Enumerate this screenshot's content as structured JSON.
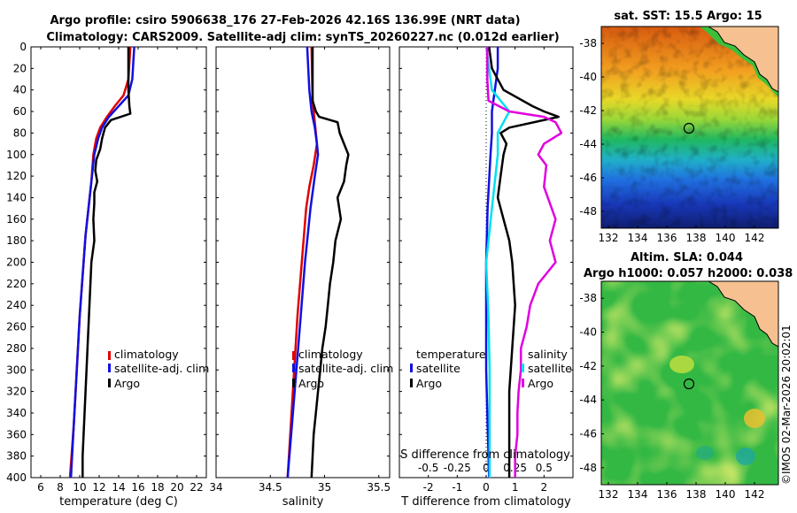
{
  "header": {
    "line1": "Argo profile: csiro 5906638_176 27-Feb-2026 42.16S 136.99E (NRT data)",
    "line2": "Climatology: CARS2009. Satellite-adj clim: synTS_20260227.nc (0.012d earlier)"
  },
  "chart_data": [
    {
      "id": "temperature",
      "type": "line",
      "xlabel": "temperature (deg C)",
      "xlim": [
        5,
        23
      ],
      "xticks": [
        6,
        8,
        10,
        12,
        14,
        16,
        18,
        20,
        22
      ],
      "ylim": [
        0,
        400
      ],
      "yticks": [
        0,
        20,
        40,
        60,
        80,
        100,
        120,
        140,
        160,
        180,
        200,
        220,
        240,
        260,
        280,
        300,
        320,
        340,
        360,
        380,
        400
      ],
      "y_reversed": true,
      "legend": [
        "climatology",
        "satellite-adj. clim",
        "Argo"
      ],
      "series": [
        {
          "name": "climatology",
          "color": "#e00000",
          "depth": [
            0,
            30,
            45,
            55,
            65,
            75,
            85,
            100,
            125,
            150,
            175,
            200,
            250,
            300,
            350,
            400
          ],
          "values": [
            15.2,
            15.0,
            14.5,
            13.6,
            12.8,
            12.1,
            11.7,
            11.4,
            11.2,
            10.9,
            10.6,
            10.4,
            10.0,
            9.7,
            9.4,
            9.0
          ]
        },
        {
          "name": "satellite-adj. clim",
          "color": "#1010e0",
          "depth": [
            0,
            30,
            45,
            55,
            65,
            75,
            85,
            100,
            125,
            150,
            175,
            200,
            250,
            300,
            350,
            400
          ],
          "values": [
            15.6,
            15.4,
            15.0,
            14.0,
            13.0,
            12.3,
            11.9,
            11.5,
            11.2,
            10.9,
            10.6,
            10.4,
            10.0,
            9.7,
            9.4,
            9.1
          ]
        },
        {
          "name": "Argo",
          "color": "#000000",
          "depth": [
            0,
            20,
            40,
            55,
            62,
            68,
            75,
            85,
            95,
            105,
            115,
            125,
            135,
            145,
            160,
            180,
            200,
            220,
            240,
            260,
            280,
            300,
            320,
            340,
            360,
            380,
            400
          ],
          "values": [
            15.0,
            15.0,
            15.0,
            15.1,
            15.2,
            13.2,
            12.6,
            12.3,
            12.1,
            11.7,
            11.6,
            11.8,
            11.5,
            11.5,
            11.4,
            11.5,
            11.2,
            11.1,
            11.0,
            10.9,
            10.8,
            10.7,
            10.6,
            10.5,
            10.4,
            10.3,
            10.3
          ]
        }
      ]
    },
    {
      "id": "salinity",
      "type": "line",
      "xlabel": "salinity",
      "xlim": [
        34,
        35.6
      ],
      "xticks": [
        34,
        34.5,
        35,
        35.5
      ],
      "xticklabels": [
        "34",
        "34.5",
        "35",
        "35.5"
      ],
      "ylim": [
        0,
        400
      ],
      "y_reversed": true,
      "legend": [
        "climatology",
        "satellite-adj. clim",
        "Argo"
      ],
      "series": [
        {
          "name": "climatology",
          "color": "#e00000",
          "depth": [
            0,
            50,
            70,
            90,
            110,
            130,
            150,
            200,
            250,
            300,
            350,
            400
          ],
          "values": [
            34.88,
            34.89,
            34.91,
            34.93,
            34.9,
            34.86,
            34.83,
            34.79,
            34.75,
            34.72,
            34.69,
            34.66
          ]
        },
        {
          "name": "satellite-adj. clim",
          "color": "#1010e0",
          "depth": [
            0,
            40,
            60,
            75,
            90,
            100,
            120,
            150,
            200,
            250,
            300,
            350,
            400
          ],
          "values": [
            34.84,
            34.86,
            34.88,
            34.91,
            34.93,
            34.94,
            34.91,
            34.87,
            34.82,
            34.78,
            34.74,
            34.7,
            34.66
          ]
        },
        {
          "name": "Argo",
          "color": "#000000",
          "depth": [
            0,
            30,
            50,
            60,
            65,
            70,
            80,
            90,
            100,
            110,
            125,
            140,
            160,
            180,
            200,
            220,
            240,
            260,
            280,
            300,
            320,
            340,
            360,
            380,
            400
          ],
          "values": [
            34.89,
            34.89,
            34.89,
            34.92,
            34.95,
            35.12,
            35.14,
            35.18,
            35.22,
            35.2,
            35.18,
            35.12,
            35.15,
            35.1,
            35.08,
            35.05,
            35.03,
            35.01,
            34.98,
            34.96,
            34.94,
            34.92,
            34.9,
            34.89,
            34.88
          ]
        }
      ]
    },
    {
      "id": "differences",
      "type": "line",
      "xlabel": "T difference from climatology",
      "xlim": [
        -3,
        3
      ],
      "xticks": [
        -2,
        -1,
        0,
        1,
        2
      ],
      "top_axis_label": "S difference from climatology",
      "top_ticks": [
        -0.5,
        -0.25,
        0,
        0.25,
        0.5
      ],
      "top_ticklabels": [
        "-0.5",
        "-0.25",
        "0",
        "0.25",
        "0.5"
      ],
      "ylim": [
        0,
        400
      ],
      "y_reversed": true,
      "legend_left_title": "temperature",
      "legend_left": [
        "satellite",
        "Argo"
      ],
      "legend_right_title": "salinity",
      "legend_right": [
        "satellite",
        "Argo"
      ],
      "series": [
        {
          "name": "temperature satellite",
          "color": "#1010e0",
          "depth": [
            0,
            20,
            40,
            60,
            80,
            100,
            150,
            200,
            250,
            300,
            350,
            400
          ],
          "values": [
            0.4,
            0.4,
            0.3,
            0.2,
            0.2,
            0.15,
            0.05,
            0.0,
            0.0,
            0.0,
            0.05,
            0.1
          ]
        },
        {
          "name": "temperature Argo",
          "color": "#000000",
          "depth": [
            0,
            20,
            40,
            55,
            60,
            65,
            75,
            80,
            90,
            100,
            120,
            140,
            160,
            180,
            200,
            240,
            280,
            320,
            360,
            400
          ],
          "values": [
            0.1,
            0.2,
            0.6,
            1.6,
            2.0,
            2.5,
            0.8,
            0.5,
            0.7,
            0.6,
            0.5,
            0.4,
            0.6,
            0.8,
            0.9,
            1.0,
            0.9,
            0.8,
            0.8,
            0.8
          ]
        },
        {
          "name": "salinity satellite",
          "color": "#00e0f0",
          "depth": [
            0,
            40,
            60,
            80,
            100,
            150,
            200,
            250,
            300,
            350,
            400
          ],
          "values": [
            0.0,
            0.05,
            0.2,
            0.1,
            0.1,
            0.05,
            0.0,
            0.02,
            0.03,
            0.03,
            0.03
          ]
        },
        {
          "name": "salinity Argo",
          "color": "#e000e0",
          "depth": [
            0,
            30,
            50,
            60,
            65,
            70,
            80,
            90,
            100,
            110,
            130,
            160,
            180,
            200,
            220,
            240,
            260,
            280,
            300,
            320,
            340,
            360,
            380,
            400
          ],
          "values": [
            0.01,
            0.01,
            0.02,
            0.2,
            0.5,
            0.6,
            0.65,
            0.5,
            0.45,
            0.52,
            0.5,
            0.6,
            0.55,
            0.6,
            0.45,
            0.38,
            0.35,
            0.3,
            0.3,
            0.28,
            0.27,
            0.27,
            0.25,
            0.25
          ]
        }
      ]
    }
  ],
  "maps": {
    "sst": {
      "title": "sat. SST: 15.5 Argo: 15",
      "xticks": [
        "132",
        "134",
        "136",
        "138",
        "140",
        "142"
      ],
      "yticks": [
        "-38",
        "-40",
        "-42",
        "-44",
        "-46",
        "-48"
      ],
      "argo_lon": 136.99,
      "argo_lat": -42.16
    },
    "sla": {
      "title_line1": "Altim. SLA: 0.044",
      "title_line2": "Argo h1000: 0.057 h2000: 0.038",
      "xticks": [
        "132",
        "134",
        "136",
        "138",
        "140",
        "142"
      ],
      "yticks": [
        "-38",
        "-40",
        "-42",
        "-44",
        "-46",
        "-48"
      ],
      "argo_lon": 136.99,
      "argo_lat": -42.16
    }
  },
  "stamp": "©IMOS 02-Mar-2026 20:02:01"
}
